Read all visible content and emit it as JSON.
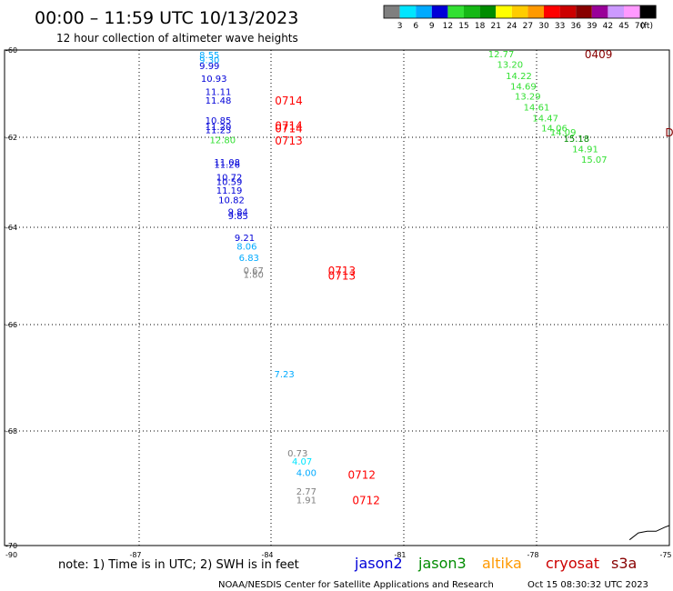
{
  "chart_data": {
    "type": "scatter",
    "title": "00:00 – 11:59 UTC 10/13/2023",
    "subtitle": "12 hour collection of altimeter wave heights",
    "xlim": [
      -90,
      -75
    ],
    "ylim": [
      -70,
      -60
    ],
    "x_ticks": [
      -87,
      -84,
      -81,
      -78,
      -75
    ],
    "x_tick_labels": [
      "-87",
      "-84",
      "-81",
      "-78",
      "-75"
    ],
    "y_ticks": [
      -60,
      -62,
      -64,
      -66,
      -68,
      -70
    ],
    "y_tick_labels": [
      "-60",
      "-62",
      "-64",
      "-66",
      "-68",
      "-70"
    ],
    "corner_label": "-90",
    "grid": true,
    "legend_scale": {
      "labels": [
        "3",
        "6",
        "9",
        "12",
        "15",
        "18",
        "21",
        "24",
        "27",
        "30",
        "33",
        "36",
        "39",
        "42",
        "45",
        "70"
      ],
      "unit": "(ft)",
      "colors": [
        "#7f7f7f",
        "#00e5ff",
        "#00aaff",
        "#0000d8",
        "#33e033",
        "#15b815",
        "#008c00",
        "#ffff00",
        "#ffcc00",
        "#ff9900",
        "#ff0000",
        "#cc0000",
        "#880000",
        "#990099",
        "#cc99ff",
        "#ff99ff",
        "#000000"
      ]
    },
    "points": [
      {
        "lon": -85.4,
        "lat": -60.1,
        "swh": "8.55",
        "c": "#00aaff"
      },
      {
        "lon": -85.4,
        "lat": -60.22,
        "swh": "9.30",
        "c": "#00aaff"
      },
      {
        "lon": -85.4,
        "lat": -60.35,
        "swh": "9.99",
        "c": "#0000d8"
      },
      {
        "lon": -85.3,
        "lat": -60.65,
        "swh": "10.93",
        "c": "#0000d8"
      },
      {
        "lon": -85.2,
        "lat": -60.95,
        "swh": "11.11",
        "c": "#0000d8"
      },
      {
        "lon": -85.2,
        "lat": -61.15,
        "swh": "11.48",
        "c": "#0000d8"
      },
      {
        "lon": -85.2,
        "lat": -61.6,
        "swh": "10.85",
        "c": "#0000d8"
      },
      {
        "lon": -85.2,
        "lat": -61.75,
        "swh": "11.20",
        "c": "#0000d8"
      },
      {
        "lon": -85.2,
        "lat": -61.82,
        "swh": "11.23",
        "c": "#0000d8"
      },
      {
        "lon": -85.1,
        "lat": -62.05,
        "swh": "12.80",
        "c": "#33e033"
      },
      {
        "lon": -85.0,
        "lat": -62.55,
        "swh": "11.08",
        "c": "#0000d8"
      },
      {
        "lon": -85.0,
        "lat": -62.6,
        "swh": "11.26",
        "c": "#0000d8"
      },
      {
        "lon": -84.95,
        "lat": -62.88,
        "swh": "10.72",
        "c": "#0000d8"
      },
      {
        "lon": -84.95,
        "lat": -62.98,
        "swh": "10.59",
        "c": "#0000d8"
      },
      {
        "lon": -84.95,
        "lat": -63.17,
        "swh": "11.19",
        "c": "#0000d8"
      },
      {
        "lon": -84.9,
        "lat": -63.38,
        "swh": "10.82",
        "c": "#0000d8"
      },
      {
        "lon": -84.75,
        "lat": -63.65,
        "swh": "9.84",
        "c": "#0000d8"
      },
      {
        "lon": -84.75,
        "lat": -63.74,
        "swh": "9.85",
        "c": "#0000d8"
      },
      {
        "lon": -84.6,
        "lat": -64.21,
        "swh": "9.21",
        "c": "#0000d8"
      },
      {
        "lon": -84.55,
        "lat": -64.38,
        "swh": "8.06",
        "c": "#00aaff"
      },
      {
        "lon": -84.5,
        "lat": -64.62,
        "swh": "6.83",
        "c": "#00aaff"
      },
      {
        "lon": -84.4,
        "lat": -64.88,
        "swh": "0.67",
        "c": "#7f7f7f"
      },
      {
        "lon": -84.4,
        "lat": -64.96,
        "swh": "1.80",
        "c": "#7f7f7f"
      },
      {
        "lon": -83.7,
        "lat": -66.92,
        "swh": "7.23",
        "c": "#00aaff"
      },
      {
        "lon": -83.4,
        "lat": -68.38,
        "swh": "0.73",
        "c": "#7f7f7f"
      },
      {
        "lon": -83.3,
        "lat": -68.52,
        "swh": "4.07",
        "c": "#00e5ff"
      },
      {
        "lon": -83.2,
        "lat": -68.72,
        "swh": "4.00",
        "c": "#00aaff"
      },
      {
        "lon": -83.2,
        "lat": -69.05,
        "swh": "2.77",
        "c": "#7f7f7f"
      },
      {
        "lon": -83.2,
        "lat": -69.2,
        "swh": "1.91",
        "c": "#7f7f7f"
      },
      {
        "lon": -78.8,
        "lat": -60.08,
        "swh": "12.77",
        "c": "#33e033"
      },
      {
        "lon": -78.6,
        "lat": -60.32,
        "swh": "13.20",
        "c": "#33e033"
      },
      {
        "lon": -78.4,
        "lat": -60.58,
        "swh": "14.22",
        "c": "#33e033"
      },
      {
        "lon": -78.3,
        "lat": -60.82,
        "swh": "14.69",
        "c": "#33e033"
      },
      {
        "lon": -78.2,
        "lat": -61.05,
        "swh": "13.29",
        "c": "#33e033"
      },
      {
        "lon": -78.0,
        "lat": -61.3,
        "swh": "14.61",
        "c": "#33e033"
      },
      {
        "lon": -77.8,
        "lat": -61.55,
        "swh": "14.47",
        "c": "#33e033"
      },
      {
        "lon": -77.6,
        "lat": -61.78,
        "swh": "14.06",
        "c": "#33e033"
      },
      {
        "lon": -77.4,
        "lat": -61.88,
        "swh": "14.09",
        "c": "#33e033"
      },
      {
        "lon": -77.1,
        "lat": -62.02,
        "swh": "15.18",
        "c": "#008c00"
      },
      {
        "lon": -76.9,
        "lat": -62.25,
        "swh": "14.91",
        "c": "#33e033"
      },
      {
        "lon": -76.7,
        "lat": -62.48,
        "swh": "15.07",
        "c": "#33e033"
      }
    ],
    "pass_labels": [
      {
        "lon": -83.6,
        "lat": -61.15,
        "text": "0714"
      },
      {
        "lon": -83.6,
        "lat": -61.72,
        "text": "0714"
      },
      {
        "lon": -83.6,
        "lat": -61.78,
        "text": "0714"
      },
      {
        "lon": -83.6,
        "lat": -62.06,
        "text": "0713"
      },
      {
        "lon": -82.4,
        "lat": -64.88,
        "text": "0713"
      },
      {
        "lon": -82.4,
        "lat": -64.98,
        "text": "0713"
      },
      {
        "lon": -81.95,
        "lat": -68.75,
        "text": "0712"
      },
      {
        "lon": -81.85,
        "lat": -69.2,
        "text": "0712"
      }
    ],
    "pass_labels_dark": [
      {
        "lon": -76.6,
        "lat": -60.08,
        "text": "0409"
      },
      {
        "lon": -75.0,
        "lat": -61.88,
        "text": "D"
      }
    ],
    "coast_segments": [
      [
        [
          -75.9,
          -69.9
        ],
        [
          -75.7,
          -69.78
        ],
        [
          -75.5,
          -69.75
        ],
        [
          -75.3,
          -69.75
        ],
        [
          -75.1,
          -69.68
        ],
        [
          -75.0,
          -69.65
        ]
      ]
    ]
  },
  "note": "note: 1) Time is in UTC; 2) SWH is in feet",
  "missions": [
    {
      "name": "jason2",
      "color": "#0000d8"
    },
    {
      "name": "jason3",
      "color": "#008c00"
    },
    {
      "name": "altika",
      "color": "#ff9900"
    },
    {
      "name": "cryosat",
      "color": "#cc0000"
    },
    {
      "name": "s3a",
      "color": "#880000"
    }
  ],
  "footer": {
    "credit": "NOAA/NESDIS Center for Satellite Applications and Research",
    "timestamp": "Oct 15 08:30:32 UTC 2023"
  }
}
